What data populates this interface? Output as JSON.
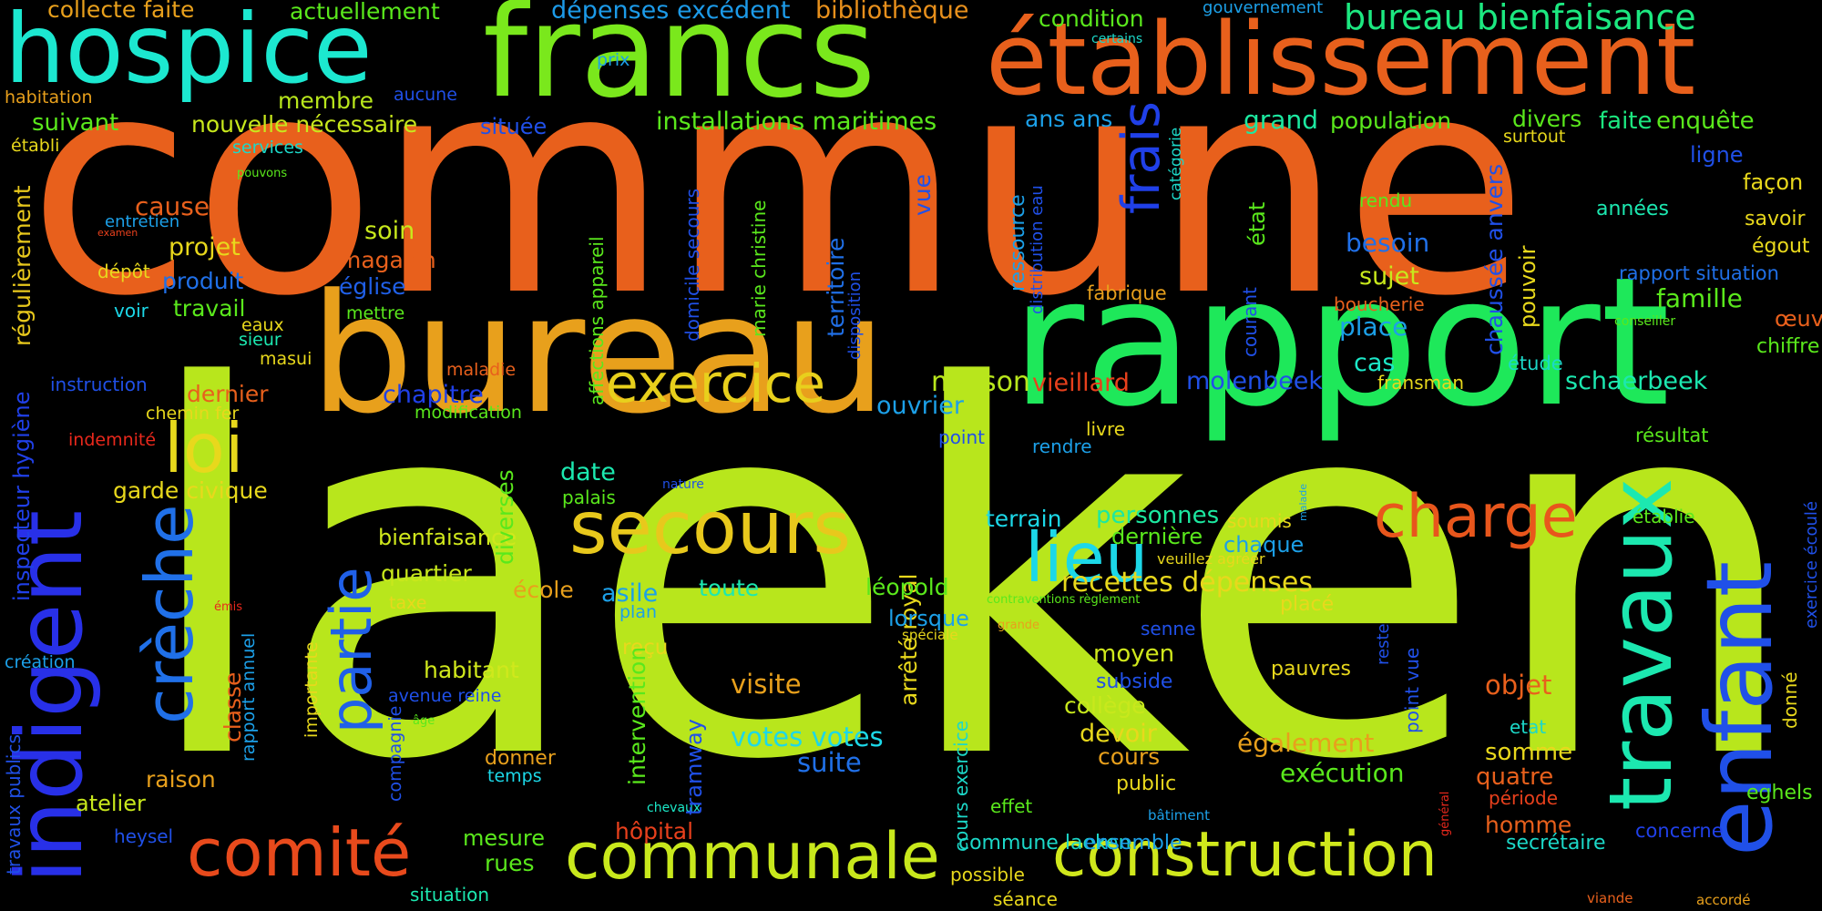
{
  "colors": {
    "background": "#000000",
    "orange": "#e8601c",
    "lime": "#b8e61c",
    "green": "#1ee85a",
    "yellow": "#e8d11c",
    "amber": "#e8a01c",
    "teal": "#1ce8c8",
    "cyan": "#1cc0e8",
    "blue": "#1c8ae8",
    "indigo": "#2830e8",
    "red": "#e8281c",
    "emerald": "#1ce87a"
  },
  "words": [
    {
      "text": "commune",
      "color": "#e8601c"
    },
    {
      "text": "laeken",
      "color": "#b8e61c"
    },
    {
      "text": "rapport",
      "color": "#1ee85a"
    },
    {
      "text": "bureau",
      "color": "#e8a01c"
    },
    {
      "text": "francs",
      "color": "#7ae81c"
    },
    {
      "text": "établissement",
      "color": "#e8601c"
    },
    {
      "text": "hospice",
      "color": "#1ce8d0"
    },
    {
      "text": "indigent",
      "color": "#2830e8"
    },
    {
      "text": "travaux",
      "color": "#1ce8b0"
    },
    {
      "text": "enfant",
      "color": "#2050e8"
    },
    {
      "text": "secours",
      "color": "#e8c81c"
    },
    {
      "text": "communale",
      "color": "#c8e81c"
    },
    {
      "text": "construction",
      "color": "#d0e81c"
    },
    {
      "text": "comité",
      "color": "#e84a1c"
    },
    {
      "text": "charge",
      "color": "#e8561c"
    },
    {
      "text": "crèche",
      "color": "#2070e8"
    },
    {
      "text": "partie",
      "color": "#2060e8"
    },
    {
      "text": "lieu",
      "color": "#1cd8e8"
    },
    {
      "text": "loi",
      "color": "#e8d81c"
    },
    {
      "text": "exercice",
      "color": "#e8d01c"
    },
    {
      "text": "frais",
      "color": "#2040e8"
    },
    {
      "text": "bureau bienfaisance",
      "color": "#1ce880"
    },
    {
      "text": "installations maritimes",
      "color": "#5ae81c"
    },
    {
      "text": "dépenses excédent",
      "color": "#1c9ae8"
    },
    {
      "text": "bibliothèque",
      "color": "#e8901c"
    },
    {
      "text": "collecte faite",
      "color": "#e8a01c"
    },
    {
      "text": "actuellement",
      "color": "#5ae81c"
    },
    {
      "text": "condition",
      "color": "#5ae81c"
    },
    {
      "text": "gouvernement",
      "color": "#1ca0e8"
    },
    {
      "text": "certains",
      "color": "#1cd8c8"
    },
    {
      "text": "prix",
      "color": "#1ca0e8"
    },
    {
      "text": "habitation",
      "color": "#e8a01c"
    },
    {
      "text": "aucune",
      "color": "#2050e8"
    },
    {
      "text": "membre",
      "color": "#b8e61c"
    },
    {
      "text": "suivant",
      "color": "#5ae81c"
    },
    {
      "text": "nouvelle nécessaire",
      "color": "#c8e81c"
    },
    {
      "text": "située",
      "color": "#2050e8"
    },
    {
      "text": "ans ans",
      "color": "#1ca0e8"
    },
    {
      "text": "grand",
      "color": "#1ce8a0"
    },
    {
      "text": "population",
      "color": "#5ae81c"
    },
    {
      "text": "divers",
      "color": "#5ae81c"
    },
    {
      "text": "faite",
      "color": "#1ce880"
    },
    {
      "text": "enquête",
      "color": "#5ae81c"
    },
    {
      "text": "surtout",
      "color": "#e8d81c"
    },
    {
      "text": "ligne",
      "color": "#2050e8"
    },
    {
      "text": "façon",
      "color": "#e8d81c"
    },
    {
      "text": "établi",
      "color": "#e8d81c"
    },
    {
      "text": "services",
      "color": "#1cd8c8"
    },
    {
      "text": "pouvons",
      "color": "#5ae81c"
    },
    {
      "text": "régulièrement",
      "color": "#e8c81c"
    },
    {
      "text": "cause",
      "color": "#e8601c"
    },
    {
      "text": "entretien",
      "color": "#1ca0e8"
    },
    {
      "text": "examen",
      "color": "#e8401c"
    },
    {
      "text": "projet",
      "color": "#e8d81c"
    },
    {
      "text": "soin",
      "color": "#c8e81c"
    },
    {
      "text": "magasin",
      "color": "#e8601c"
    },
    {
      "text": "dépôt",
      "color": "#e8d81c"
    },
    {
      "text": "produit",
      "color": "#2070e8"
    },
    {
      "text": "église",
      "color": "#2060e8"
    },
    {
      "text": "voir",
      "color": "#1cd8e8"
    },
    {
      "text": "travail",
      "color": "#5ae81c"
    },
    {
      "text": "mettre",
      "color": "#5ae81c"
    },
    {
      "text": "eaux",
      "color": "#e8d81c"
    },
    {
      "text": "sieur",
      "color": "#1ce8b0"
    },
    {
      "text": "masui",
      "color": "#e8d81c"
    },
    {
      "text": "instruction",
      "color": "#2050e8"
    },
    {
      "text": "maladie",
      "color": "#e8601c"
    },
    {
      "text": "dernier",
      "color": "#e8601c"
    },
    {
      "text": "chapitre",
      "color": "#2040e8"
    },
    {
      "text": "chemin fer",
      "color": "#e8d81c"
    },
    {
      "text": "modification",
      "color": "#5ae81c"
    },
    {
      "text": "indemnité",
      "color": "#e8281c"
    },
    {
      "text": "inspecteur hygiène",
      "color": "#2040e8"
    },
    {
      "text": "garde civique",
      "color": "#e8d81c"
    },
    {
      "text": "bienfaisance",
      "color": "#d0e81c"
    },
    {
      "text": "quartier",
      "color": "#c8e81c"
    },
    {
      "text": "diverses",
      "color": "#5ae81c"
    },
    {
      "text": "taxe",
      "color": "#e8d81c"
    },
    {
      "text": "école",
      "color": "#e8a01c"
    },
    {
      "text": "asile",
      "color": "#1ca0e8"
    },
    {
      "text": "toute",
      "color": "#1ce8b0"
    },
    {
      "text": "plan",
      "color": "#1ca0e8"
    },
    {
      "text": "reçu",
      "color": "#e8d81c"
    },
    {
      "text": "émis",
      "color": "#e8281c"
    },
    {
      "text": "création",
      "color": "#1ca0e8"
    },
    {
      "text": "habitant",
      "color": "#d0e81c"
    },
    {
      "text": "classe",
      "color": "#e8601c"
    },
    {
      "text": "rapport annuel",
      "color": "#1ca0e8"
    },
    {
      "text": "avenue reine",
      "color": "#2050e8"
    },
    {
      "text": "âge",
      "color": "#5ae81c"
    },
    {
      "text": "importante",
      "color": "#e8d81c"
    },
    {
      "text": "compagnie",
      "color": "#2050e8"
    },
    {
      "text": "travaux publics",
      "color": "#2050e8"
    },
    {
      "text": "raison",
      "color": "#e8a01c"
    },
    {
      "text": "atelier",
      "color": "#c8e81c"
    },
    {
      "text": "donner",
      "color": "#e8a01c"
    },
    {
      "text": "temps",
      "color": "#1cd8e8"
    },
    {
      "text": "heysel",
      "color": "#2050e8"
    },
    {
      "text": "mesure",
      "color": "#5ae81c"
    },
    {
      "text": "rues",
      "color": "#5ae81c"
    },
    {
      "text": "situation",
      "color": "#1ce8b0"
    },
    {
      "text": "hôpital",
      "color": "#e8401c"
    },
    {
      "text": "chevaux",
      "color": "#1ce8c8"
    },
    {
      "text": "intervention",
      "color": "#5ae81c"
    },
    {
      "text": "tramway",
      "color": "#2050e8"
    },
    {
      "text": "visite",
      "color": "#e8a01c"
    },
    {
      "text": "votes votes",
      "color": "#1cd8e8"
    },
    {
      "text": "suite",
      "color": "#2070e8"
    },
    {
      "text": "arrêté royal",
      "color": "#e8d81c"
    },
    {
      "text": "cours exercice",
      "color": "#1cd8c8"
    },
    {
      "text": "léopold",
      "color": "#5ae81c"
    },
    {
      "text": "lorsque",
      "color": "#1ca0e8"
    },
    {
      "text": "spéciale",
      "color": "#e8d81c"
    },
    {
      "text": "date",
      "color": "#1ce8b0"
    },
    {
      "text": "palais",
      "color": "#5ae81c"
    },
    {
      "text": "nature",
      "color": "#2050e8"
    },
    {
      "text": "ouvrier",
      "color": "#1ca0e8"
    },
    {
      "text": "point",
      "color": "#2050e8"
    },
    {
      "text": "maison",
      "color": "#b8e61c"
    },
    {
      "text": "vieillard",
      "color": "#e8401c"
    },
    {
      "text": "molenbeek",
      "color": "#2050e8"
    },
    {
      "text": "rendre",
      "color": "#1ca0e8"
    },
    {
      "text": "livre",
      "color": "#e8d81c"
    },
    {
      "text": "terrain",
      "color": "#1cd8e8"
    },
    {
      "text": "personnes",
      "color": "#1ce8a0"
    },
    {
      "text": "dernière",
      "color": "#5ae81c"
    },
    {
      "text": "soumis",
      "color": "#e8d81c"
    },
    {
      "text": "chaque",
      "color": "#1ca0e8"
    },
    {
      "text": "malade",
      "color": "#1ca0e8"
    },
    {
      "text": "veuillez agréer",
      "color": "#e8d81c"
    },
    {
      "text": "recettes dépenses",
      "color": "#e8d81c"
    },
    {
      "text": "contraventions règlement",
      "color": "#5ae81c"
    },
    {
      "text": "placé",
      "color": "#e8d81c"
    },
    {
      "text": "grande",
      "color": "#e8a01c"
    },
    {
      "text": "senne",
      "color": "#2050e8"
    },
    {
      "text": "moyen",
      "color": "#d0e81c"
    },
    {
      "text": "subside",
      "color": "#2050e8"
    },
    {
      "text": "collège",
      "color": "#c8e81c"
    },
    {
      "text": "devoir",
      "color": "#e8d81c"
    },
    {
      "text": "cours",
      "color": "#e8a01c"
    },
    {
      "text": "public",
      "color": "#e8d81c"
    },
    {
      "text": "effet",
      "color": "#5ae81c"
    },
    {
      "text": "bâtiment",
      "color": "#1ca0e8"
    },
    {
      "text": "commune laeken",
      "color": "#1cd8c8"
    },
    {
      "text": "ensemble",
      "color": "#1ca0e8"
    },
    {
      "text": "possible",
      "color": "#e8d81c"
    },
    {
      "text": "séance",
      "color": "#e8d81c"
    },
    {
      "text": "pauvres",
      "color": "#e8d81c"
    },
    {
      "text": "également",
      "color": "#e8a01c"
    },
    {
      "text": "exécution",
      "color": "#5ae81c"
    },
    {
      "text": "reste",
      "color": "#2050e8"
    },
    {
      "text": "point vue",
      "color": "#2050e8"
    },
    {
      "text": "objet",
      "color": "#e8601c"
    },
    {
      "text": "somme",
      "color": "#e8d81c"
    },
    {
      "text": "quatre",
      "color": "#e8601c"
    },
    {
      "text": "etat",
      "color": "#1cd8c8"
    },
    {
      "text": "période",
      "color": "#e8401c"
    },
    {
      "text": "homme",
      "color": "#e8601c"
    },
    {
      "text": "général",
      "color": "#e8281c"
    },
    {
      "text": "secrétaire",
      "color": "#1cd8c8"
    },
    {
      "text": "concerne",
      "color": "#2040e8"
    },
    {
      "text": "viande",
      "color": "#e8601c"
    },
    {
      "text": "accordé",
      "color": "#e8a01c"
    },
    {
      "text": "eghels",
      "color": "#5ae81c"
    },
    {
      "text": "donné",
      "color": "#e8d81c"
    },
    {
      "text": "exercice écoulé",
      "color": "#2050e8"
    },
    {
      "text": "établie",
      "color": "#5ae81c"
    },
    {
      "text": "résultat",
      "color": "#5ae81c"
    },
    {
      "text": "chiffre",
      "color": "#5ae81c"
    },
    {
      "text": "œuvre",
      "color": "#e8601c"
    },
    {
      "text": "famille",
      "color": "#5ae81c"
    },
    {
      "text": "conseiller",
      "color": "#5ae81c"
    },
    {
      "text": "rapport situation",
      "color": "#2070e8"
    },
    {
      "text": "égout",
      "color": "#e8d81c"
    },
    {
      "text": "savoir",
      "color": "#e8d81c"
    },
    {
      "text": "années",
      "color": "#1ce8b0"
    },
    {
      "text": "schaerbeek",
      "color": "#1ce8b0"
    },
    {
      "text": "étude",
      "color": "#1cd8c8"
    },
    {
      "text": "fransman",
      "color": "#e8d81c"
    },
    {
      "text": "cas",
      "color": "#1ce8c8"
    },
    {
      "text": "place",
      "color": "#1ca0e8"
    },
    {
      "text": "boucherie",
      "color": "#e8601c"
    },
    {
      "text": "sujet",
      "color": "#c8e81c"
    },
    {
      "text": "besoin",
      "color": "#2070e8"
    },
    {
      "text": "rendu",
      "color": "#5ae81c"
    },
    {
      "text": "pouvoir",
      "color": "#e8d81c"
    },
    {
      "text": "chaussée anvers",
      "color": "#2050e8"
    },
    {
      "text": "courant",
      "color": "#2050e8"
    },
    {
      "text": "état",
      "color": "#5ae81c"
    },
    {
      "text": "catégorie",
      "color": "#1cd8c8"
    },
    {
      "text": "fabrique",
      "color": "#e8a01c"
    },
    {
      "text": "distribution eau",
      "color": "#2050e8"
    },
    {
      "text": "ressource",
      "color": "#1ca0e8"
    },
    {
      "text": "vue",
      "color": "#2050e8"
    },
    {
      "text": "disposition",
      "color": "#2050e8"
    },
    {
      "text": "territoire",
      "color": "#2070e8"
    },
    {
      "text": "marie christine",
      "color": "#5ae81c"
    },
    {
      "text": "domicile secours",
      "color": "#2050e8"
    },
    {
      "text": "affections appareil",
      "color": "#5ae81c"
    }
  ]
}
